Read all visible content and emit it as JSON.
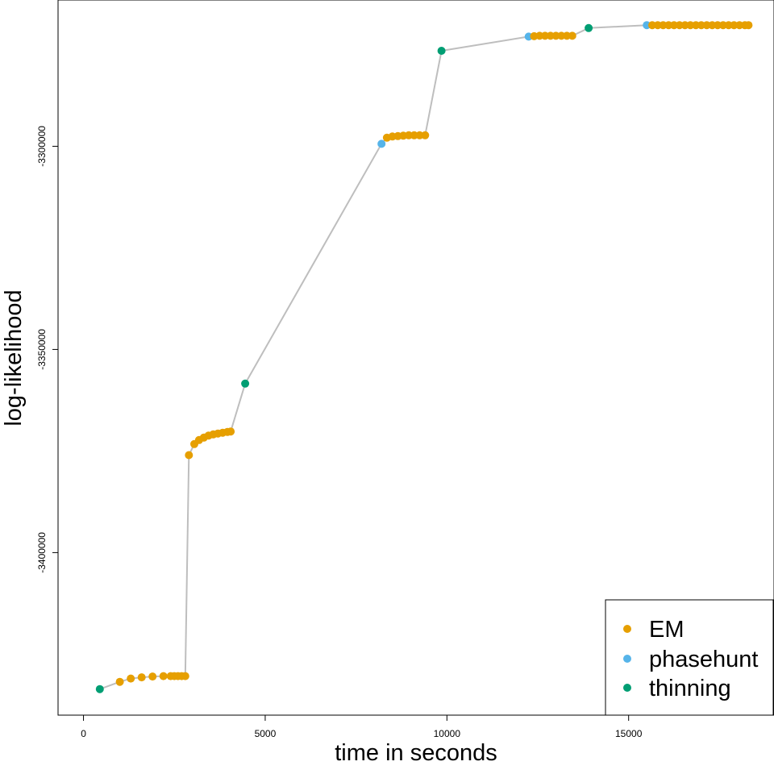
{
  "chart_data": {
    "type": "scatter",
    "title": "",
    "xlabel": "time in seconds",
    "ylabel": "log-likelihood",
    "xlim": [
      -700,
      19000
    ],
    "ylim": [
      -3440000,
      -3264000
    ],
    "xticks": [
      0,
      5000,
      10000,
      15000
    ],
    "xtick_labels": [
      "0",
      "5000",
      "10000",
      "15000"
    ],
    "yticks": [
      -3300000,
      -3350000,
      -3400000
    ],
    "ytick_labels": [
      "-3300000",
      "-3350000",
      "-3400000"
    ],
    "grid": false,
    "legend": "bottom-right",
    "line_color": "#bebebe",
    "series": [
      {
        "name": "EM",
        "color": "#E69F00"
      },
      {
        "name": "phasehunt",
        "color": "#56B4E9"
      },
      {
        "name": "thinning",
        "color": "#009E73"
      }
    ],
    "points": [
      {
        "x": 450,
        "y": -3433600,
        "series": "thinning"
      },
      {
        "x": 1000,
        "y": -3431800,
        "series": "EM"
      },
      {
        "x": 1300,
        "y": -3431000,
        "series": "EM"
      },
      {
        "x": 1600,
        "y": -3430700,
        "series": "EM"
      },
      {
        "x": 1900,
        "y": -3430500,
        "series": "EM"
      },
      {
        "x": 2200,
        "y": -3430400,
        "series": "EM"
      },
      {
        "x": 2400,
        "y": -3430400,
        "series": "EM"
      },
      {
        "x": 2500,
        "y": -3430400,
        "series": "EM"
      },
      {
        "x": 2600,
        "y": -3430400,
        "series": "EM"
      },
      {
        "x": 2700,
        "y": -3430400,
        "series": "EM"
      },
      {
        "x": 2800,
        "y": -3430400,
        "series": "EM"
      },
      {
        "x": 2900,
        "y": -3376000,
        "series": "EM"
      },
      {
        "x": 3050,
        "y": -3373300,
        "series": "EM"
      },
      {
        "x": 3180,
        "y": -3372300,
        "series": "EM"
      },
      {
        "x": 3310,
        "y": -3371700,
        "series": "EM"
      },
      {
        "x": 3440,
        "y": -3371200,
        "series": "EM"
      },
      {
        "x": 3570,
        "y": -3370900,
        "series": "EM"
      },
      {
        "x": 3700,
        "y": -3370700,
        "series": "EM"
      },
      {
        "x": 3830,
        "y": -3370500,
        "series": "EM"
      },
      {
        "x": 3960,
        "y": -3370300,
        "series": "EM"
      },
      {
        "x": 4050,
        "y": -3370200,
        "series": "EM"
      },
      {
        "x": 4450,
        "y": -3358400,
        "series": "thinning"
      },
      {
        "x": 8200,
        "y": -3299400,
        "series": "phasehunt"
      },
      {
        "x": 8350,
        "y": -3297900,
        "series": "EM"
      },
      {
        "x": 8500,
        "y": -3297600,
        "series": "EM"
      },
      {
        "x": 8650,
        "y": -3297500,
        "series": "EM"
      },
      {
        "x": 8800,
        "y": -3297400,
        "series": "EM"
      },
      {
        "x": 8950,
        "y": -3297300,
        "series": "EM"
      },
      {
        "x": 9100,
        "y": -3297300,
        "series": "EM"
      },
      {
        "x": 9250,
        "y": -3297300,
        "series": "EM"
      },
      {
        "x": 9400,
        "y": -3297300,
        "series": "EM"
      },
      {
        "x": 9850,
        "y": -3276500,
        "series": "thinning"
      },
      {
        "x": 12250,
        "y": -3273000,
        "series": "phasehunt"
      },
      {
        "x": 12400,
        "y": -3272900,
        "series": "EM"
      },
      {
        "x": 12550,
        "y": -3272800,
        "series": "EM"
      },
      {
        "x": 12700,
        "y": -3272800,
        "series": "EM"
      },
      {
        "x": 12850,
        "y": -3272800,
        "series": "EM"
      },
      {
        "x": 13000,
        "y": -3272800,
        "series": "EM"
      },
      {
        "x": 13150,
        "y": -3272800,
        "series": "EM"
      },
      {
        "x": 13300,
        "y": -3272800,
        "series": "EM"
      },
      {
        "x": 13450,
        "y": -3272800,
        "series": "EM"
      },
      {
        "x": 13900,
        "y": -3270900,
        "series": "thinning"
      },
      {
        "x": 15500,
        "y": -3270200,
        "series": "phasehunt"
      },
      {
        "x": 15650,
        "y": -3270200,
        "series": "EM"
      },
      {
        "x": 15800,
        "y": -3270200,
        "series": "EM"
      },
      {
        "x": 15950,
        "y": -3270200,
        "series": "EM"
      },
      {
        "x": 16100,
        "y": -3270200,
        "series": "EM"
      },
      {
        "x": 16250,
        "y": -3270200,
        "series": "EM"
      },
      {
        "x": 16400,
        "y": -3270200,
        "series": "EM"
      },
      {
        "x": 16550,
        "y": -3270200,
        "series": "EM"
      },
      {
        "x": 16700,
        "y": -3270200,
        "series": "EM"
      },
      {
        "x": 16850,
        "y": -3270200,
        "series": "EM"
      },
      {
        "x": 17000,
        "y": -3270200,
        "series": "EM"
      },
      {
        "x": 17150,
        "y": -3270200,
        "series": "EM"
      },
      {
        "x": 17300,
        "y": -3270200,
        "series": "EM"
      },
      {
        "x": 17450,
        "y": -3270200,
        "series": "EM"
      },
      {
        "x": 17600,
        "y": -3270200,
        "series": "EM"
      },
      {
        "x": 17750,
        "y": -3270200,
        "series": "EM"
      },
      {
        "x": 17900,
        "y": -3270200,
        "series": "EM"
      },
      {
        "x": 18050,
        "y": -3270200,
        "series": "EM"
      },
      {
        "x": 18200,
        "y": -3270200,
        "series": "EM"
      },
      {
        "x": 18300,
        "y": -3270200,
        "series": "EM"
      }
    ]
  }
}
